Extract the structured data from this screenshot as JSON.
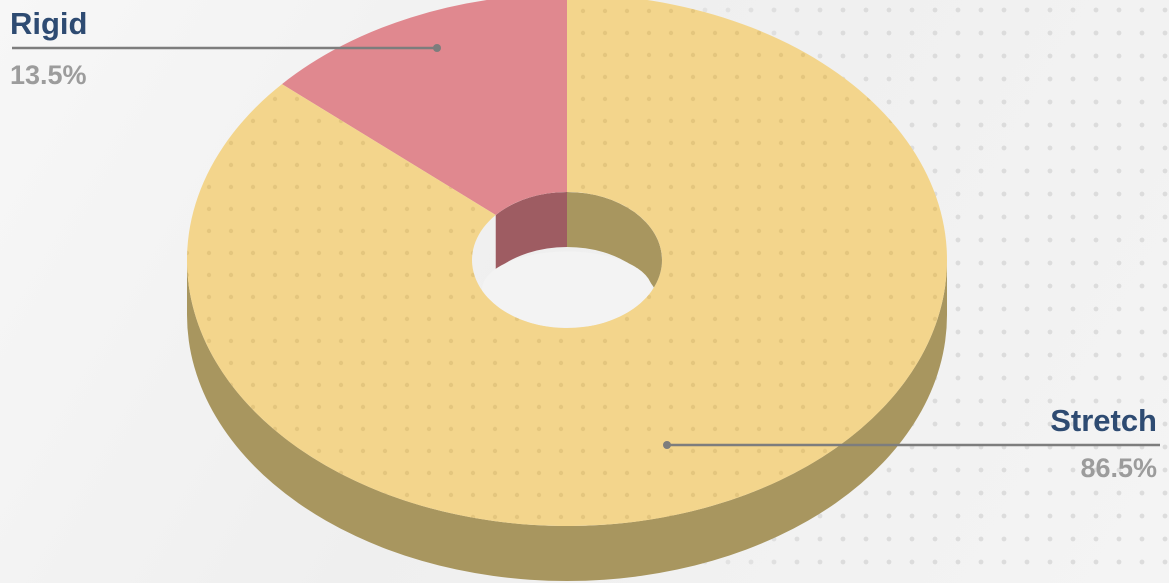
{
  "chart_data": {
    "type": "pie",
    "style": "3d-donut",
    "title": "",
    "slices": [
      {
        "label": "Rigid",
        "value": 13.5,
        "value_label": "13.5%",
        "color": "#e0888f"
      },
      {
        "label": "Stretch",
        "value": 86.5,
        "value_label": "86.5%",
        "color": "#f3d58c"
      }
    ],
    "side_colors": {
      "Rigid": "#9e5c62",
      "Stretch": "#a8965f"
    },
    "label_colors": {
      "name": "#2e4b72",
      "value": "#9c9c9c",
      "leader_line": "#7d7d7d"
    },
    "legend": "none"
  }
}
